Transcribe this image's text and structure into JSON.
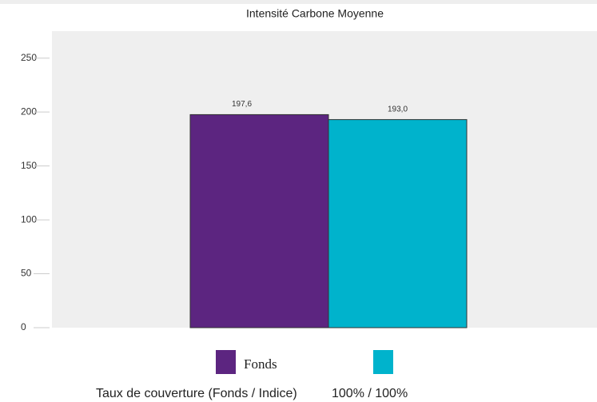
{
  "chart_data": {
    "type": "bar",
    "title": "Intensité Carbone Moyenne",
    "categories": [
      null
    ],
    "series": [
      {
        "name": "Fonds",
        "color": "#5c2580",
        "values": [
          197.6
        ],
        "value_labels": [
          "197,6"
        ]
      },
      {
        "color": "#00b3cc",
        "values": [
          193.0
        ],
        "value_labels": [
          "193,0"
        ]
      }
    ],
    "ylim": [
      0,
      275
    ],
    "yticks": [
      0,
      50,
      100,
      150,
      200,
      250
    ],
    "footer": {
      "label": "Taux de couverture (Fonds / Indice)",
      "value": "100% / 100%"
    }
  }
}
